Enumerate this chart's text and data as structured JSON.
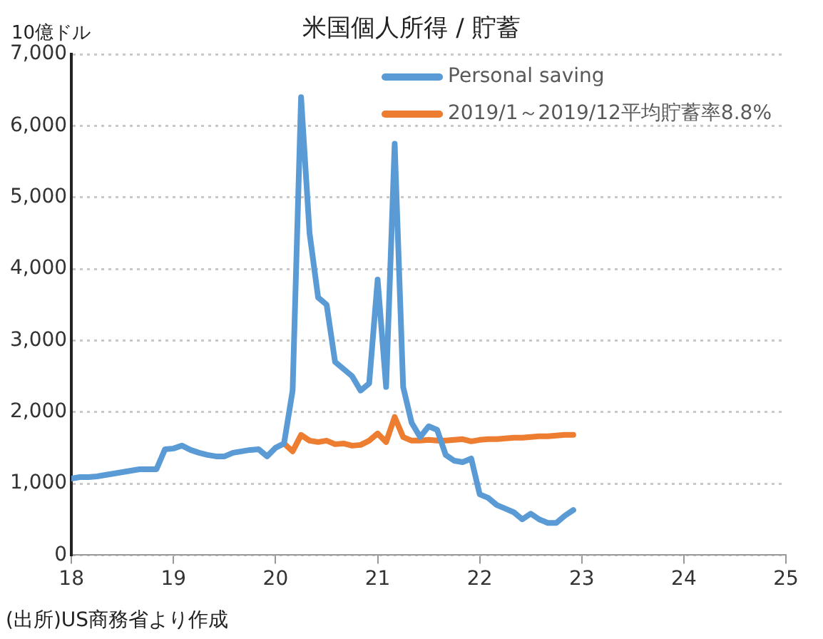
{
  "chart_data": {
    "type": "line",
    "title": "米国個人所得 / 貯蓄",
    "ylabel": "10億ドル",
    "annotations": [
      "(出所)US商務省より作成"
    ],
    "xlim": [
      18,
      25
    ],
    "xticks": [
      18,
      19,
      20,
      21,
      22,
      23,
      24,
      25
    ],
    "ylim": [
      0,
      7000
    ],
    "yticks": [
      {
        "value": 0,
        "label": "0"
      },
      {
        "value": 1000,
        "label": "1,000"
      },
      {
        "value": 2000,
        "label": "2,000"
      },
      {
        "value": 3000,
        "label": "3,000"
      },
      {
        "value": 4000,
        "label": "4,000"
      },
      {
        "value": 5000,
        "label": "5,000"
      },
      {
        "value": 6000,
        "label": "6,000"
      },
      {
        "value": 7000,
        "label": "7,000"
      }
    ],
    "grid": "y",
    "legend": "top right",
    "marker": "none",
    "line_style": "solid",
    "series": [
      {
        "name": "Personal saving",
        "color": "#5b9bd5",
        "x": [
          18,
          18.083,
          18.167,
          18.25,
          18.333,
          18.417,
          18.5,
          18.583,
          18.667,
          18.75,
          18.833,
          18.917,
          19,
          19.083,
          19.167,
          19.25,
          19.333,
          19.417,
          19.5,
          19.583,
          19.667,
          19.75,
          19.833,
          19.917,
          20,
          20.083,
          20.167,
          20.25,
          20.333,
          20.417,
          20.5,
          20.583,
          20.667,
          20.75,
          20.833,
          20.917,
          21,
          21.083,
          21.167,
          21.25,
          21.333,
          21.417,
          21.5,
          21.583,
          21.667,
          21.75,
          21.833,
          21.917,
          22,
          22.083,
          22.167,
          22.25,
          22.333,
          22.417,
          22.5,
          22.583,
          22.667,
          22.75,
          22.833,
          22.917
        ],
        "values": [
          1070,
          1090,
          1090,
          1100,
          1120,
          1140,
          1160,
          1180,
          1200,
          1200,
          1200,
          1480,
          1490,
          1530,
          1470,
          1430,
          1400,
          1380,
          1380,
          1430,
          1450,
          1470,
          1480,
          1380,
          1500,
          1560,
          2300,
          6400,
          4500,
          3600,
          3500,
          2700,
          2600,
          2500,
          2300,
          2400,
          3850,
          2350,
          5750,
          2350,
          1850,
          1650,
          1800,
          1750,
          1400,
          1320,
          1300,
          1350,
          850,
          800,
          700,
          650,
          600,
          500,
          580,
          500,
          450,
          450,
          550,
          630
        ]
      },
      {
        "name": "2019/1～2019/12平均貯蓄率8.8%",
        "color": "#ed7d31",
        "x": [
          20.083,
          20.167,
          20.25,
          20.333,
          20.417,
          20.5,
          20.583,
          20.667,
          20.75,
          20.833,
          20.917,
          21,
          21.083,
          21.167,
          21.25,
          21.333,
          21.417,
          21.5,
          21.583,
          21.667,
          21.75,
          21.833,
          21.917,
          22,
          22.083,
          22.167,
          22.25,
          22.333,
          22.417,
          22.5,
          22.583,
          22.667,
          22.75,
          22.833,
          22.917
        ],
        "values": [
          1560,
          1450,
          1680,
          1600,
          1580,
          1600,
          1550,
          1560,
          1530,
          1540,
          1600,
          1700,
          1580,
          1930,
          1650,
          1600,
          1600,
          1610,
          1600,
          1600,
          1610,
          1620,
          1590,
          1610,
          1620,
          1620,
          1630,
          1640,
          1640,
          1650,
          1660,
          1660,
          1670,
          1680,
          1680
        ]
      }
    ]
  }
}
